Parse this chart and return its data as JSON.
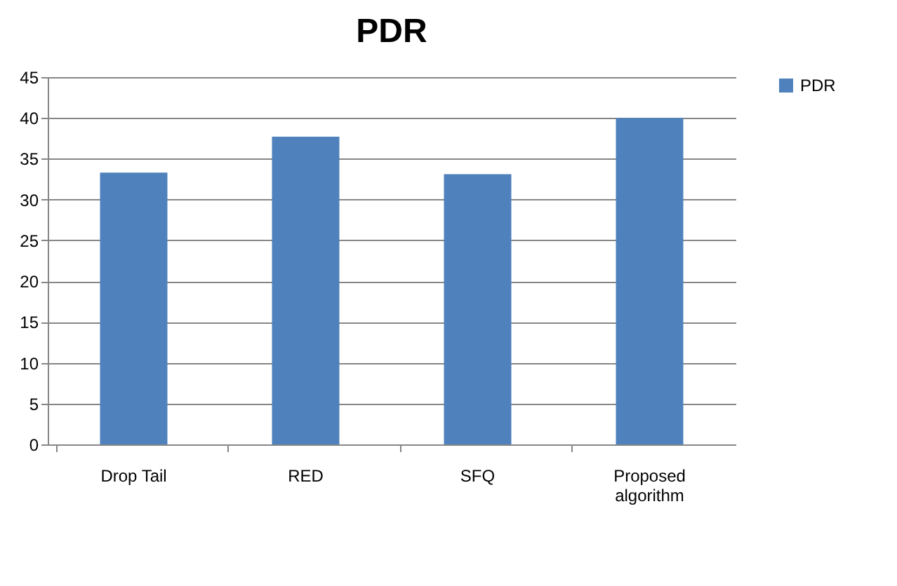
{
  "chart_data": {
    "type": "bar",
    "title": "PDR",
    "categories": [
      "Drop Tail",
      "RED",
      "SFQ",
      "Proposed algorithm"
    ],
    "series": [
      {
        "name": "PDR",
        "color": "#4f81bd",
        "values": [
          33.3,
          37.7,
          33.1,
          40
        ]
      }
    ],
    "ylim": [
      0,
      45
    ],
    "yticks": [
      0,
      5,
      10,
      15,
      20,
      25,
      30,
      35,
      40,
      45
    ],
    "grid": "y",
    "legend": "right"
  }
}
